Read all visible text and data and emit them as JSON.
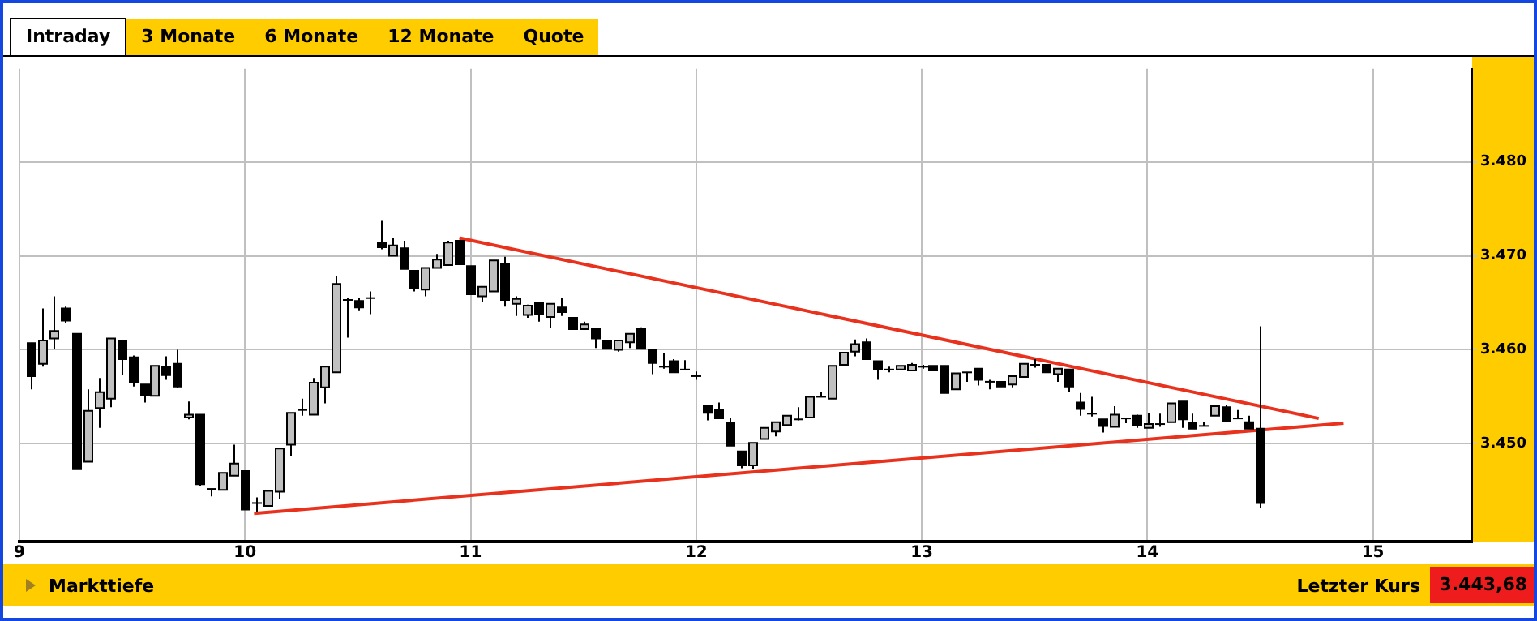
{
  "chart_data": {
    "type": "candlestick",
    "annotations": [
      "Intraday",
      "3 Monate",
      "6 Monate",
      "12 Monate",
      "Quote",
      "Markttiefe",
      "Letzter Kurs",
      "3.443,68"
    ],
    "x": [
      9.05,
      9.1,
      9.15,
      9.2,
      9.25,
      9.3,
      9.35,
      9.4,
      9.45,
      9.5,
      9.55,
      9.6,
      9.65,
      9.7,
      9.75,
      9.8,
      9.85,
      9.9,
      9.95,
      10,
      10.05,
      10.1,
      10.15,
      10.2,
      10.25,
      10.3,
      10.35,
      10.4,
      10.45,
      10.5,
      10.55,
      10.6,
      10.65,
      10.7,
      10.75,
      10.8,
      10.85,
      10.9,
      10.95,
      11,
      11.05,
      11.1,
      11.15,
      11.2,
      11.25,
      11.3,
      11.35,
      11.4,
      11.45,
      11.5,
      11.55,
      11.6,
      11.65,
      11.7,
      11.75,
      11.8,
      11.85,
      11.9,
      11.95,
      12,
      12.05,
      12.1,
      12.15,
      12.2,
      12.25,
      12.3,
      12.35,
      12.4,
      12.45,
      12.5,
      12.55,
      12.6,
      12.65,
      12.7,
      12.75,
      12.8,
      12.85,
      12.9,
      12.95,
      13,
      13.05,
      13.1,
      13.15,
      13.2,
      13.25,
      13.3,
      13.35,
      13.4,
      13.45,
      13.5,
      13.55,
      13.6,
      13.65,
      13.7,
      13.75,
      13.8,
      13.85,
      13.9,
      13.95,
      14,
      14.05,
      14.1,
      14.15,
      14.2,
      14.25,
      14.3,
      14.35,
      14.4,
      14.45,
      14.5
    ],
    "ohlc": [
      [
        3460.7,
        3460.7,
        3455.8,
        3457.2
      ],
      [
        3458.5,
        3464.4,
        3458.2,
        3461.0
      ],
      [
        3461.2,
        3465.7,
        3460.1,
        3462.0
      ],
      [
        3464.4,
        3464.6,
        3462.8,
        3463.1
      ],
      [
        3461.7,
        3461.7,
        3447.3,
        3447.3
      ],
      [
        3448.1,
        3455.8,
        3448.1,
        3453.5
      ],
      [
        3453.8,
        3457.0,
        3451.7,
        3455.5
      ],
      [
        3454.8,
        3461.2,
        3453.9,
        3461.2
      ],
      [
        3461.0,
        3461.0,
        3457.3,
        3459.0
      ],
      [
        3459.2,
        3459.4,
        3456.1,
        3456.6
      ],
      [
        3456.3,
        3456.3,
        3454.4,
        3455.2
      ],
      [
        3455.1,
        3458.3,
        3455.1,
        3458.3
      ],
      [
        3458.2,
        3459.3,
        3456.8,
        3457.3
      ],
      [
        3458.5,
        3460.0,
        3455.9,
        3456.1
      ],
      [
        3452.8,
        3454.5,
        3452.6,
        3453.1
      ],
      [
        3453.1,
        3453.1,
        3445.5,
        3445.7
      ],
      [
        3445.2,
        3445.2,
        3444.4,
        3445.2
      ],
      [
        3445.1,
        3446.9,
        3445.1,
        3446.9
      ],
      [
        3446.6,
        3449.9,
        3446.6,
        3447.9
      ],
      [
        3447.1,
        3447.1,
        3443.0,
        3443.0
      ],
      [
        3443.7,
        3444.3,
        3442.7,
        3443.7
      ],
      [
        3443.4,
        3445.0,
        3443.4,
        3445.0
      ],
      [
        3444.9,
        3449.5,
        3444.1,
        3449.5
      ],
      [
        3449.9,
        3453.3,
        3448.7,
        3453.3
      ],
      [
        3453.6,
        3454.8,
        3453.0,
        3453.6
      ],
      [
        3453.1,
        3457.0,
        3453.1,
        3456.5
      ],
      [
        3456.0,
        3458.2,
        3454.3,
        3458.2
      ],
      [
        3457.6,
        3467.8,
        3457.6,
        3467.0
      ],
      [
        3465.3,
        3465.5,
        3461.3,
        3465.3
      ],
      [
        3465.2,
        3465.5,
        3464.2,
        3464.5
      ],
      [
        3465.5,
        3466.2,
        3463.8,
        3465.5
      ],
      [
        3471.4,
        3473.8,
        3470.7,
        3470.9
      ],
      [
        3470.0,
        3471.9,
        3470.0,
        3471.1
      ],
      [
        3470.8,
        3471.6,
        3468.6,
        3468.6
      ],
      [
        3468.4,
        3468.4,
        3466.2,
        3466.6
      ],
      [
        3466.4,
        3468.7,
        3465.7,
        3468.7
      ],
      [
        3468.7,
        3470.2,
        3468.7,
        3469.6
      ],
      [
        3469.0,
        3471.6,
        3469.0,
        3471.4
      ],
      [
        3471.6,
        3471.6,
        3469.1,
        3469.1
      ],
      [
        3468.9,
        3468.9,
        3465.9,
        3465.9
      ],
      [
        3465.7,
        3466.7,
        3465.1,
        3466.7
      ],
      [
        3466.2,
        3469.5,
        3466.2,
        3469.5
      ],
      [
        3469.1,
        3469.9,
        3464.6,
        3465.3
      ],
      [
        3464.9,
        3465.7,
        3463.6,
        3465.4
      ],
      [
        3463.7,
        3464.8,
        3463.4,
        3464.7
      ],
      [
        3465.0,
        3465.0,
        3463.0,
        3463.8
      ],
      [
        3463.5,
        3464.9,
        3462.3,
        3464.9
      ],
      [
        3464.5,
        3465.5,
        3463.6,
        3464.0
      ],
      [
        3463.4,
        3463.4,
        3462.2,
        3462.2
      ],
      [
        3462.2,
        3463.0,
        3462.2,
        3462.7
      ],
      [
        3462.2,
        3462.2,
        3460.2,
        3461.2
      ],
      [
        3461.0,
        3461.0,
        3460.1,
        3460.1
      ],
      [
        3460.0,
        3461.0,
        3459.8,
        3461.0
      ],
      [
        3460.8,
        3461.7,
        3460.2,
        3461.7
      ],
      [
        3462.2,
        3462.4,
        3460.1,
        3460.1
      ],
      [
        3460.0,
        3460.0,
        3457.4,
        3458.6
      ],
      [
        3458.2,
        3459.6,
        3458.0,
        3458.2
      ],
      [
        3458.8,
        3459.0,
        3457.6,
        3457.6
      ],
      [
        3457.9,
        3458.9,
        3457.9,
        3457.9
      ],
      [
        3457.2,
        3457.7,
        3456.8,
        3457.2
      ],
      [
        3454.1,
        3454.1,
        3452.5,
        3453.3
      ],
      [
        3453.6,
        3454.4,
        3452.7,
        3452.7
      ],
      [
        3452.2,
        3452.8,
        3449.8,
        3449.8
      ],
      [
        3449.2,
        3449.2,
        3447.4,
        3447.7
      ],
      [
        3447.7,
        3450.1,
        3447.3,
        3450.1
      ],
      [
        3450.5,
        3451.7,
        3450.5,
        3451.7
      ],
      [
        3451.3,
        3452.3,
        3450.8,
        3452.3
      ],
      [
        3452.0,
        3453.0,
        3452.0,
        3453.0
      ],
      [
        3452.6,
        3453.9,
        3452.5,
        3452.6
      ],
      [
        3452.8,
        3455.0,
        3452.8,
        3455.0
      ],
      [
        3455.0,
        3455.5,
        3455.0,
        3455.0
      ],
      [
        3454.8,
        3458.3,
        3454.8,
        3458.3
      ],
      [
        3458.4,
        3459.7,
        3458.3,
        3459.7
      ],
      [
        3459.8,
        3461.1,
        3459.3,
        3460.6
      ],
      [
        3460.8,
        3461.2,
        3459.0,
        3459.0
      ],
      [
        3458.8,
        3458.8,
        3456.8,
        3457.9
      ],
      [
        3457.9,
        3458.2,
        3457.6,
        3457.9
      ],
      [
        3457.9,
        3458.3,
        3457.9,
        3458.3
      ],
      [
        3457.8,
        3458.6,
        3457.8,
        3458.4
      ],
      [
        3458.2,
        3458.4,
        3458.0,
        3458.2
      ],
      [
        3458.3,
        3458.3,
        3457.8,
        3457.8
      ],
      [
        3458.3,
        3458.3,
        3455.4,
        3455.4
      ],
      [
        3455.8,
        3457.5,
        3455.8,
        3457.5
      ],
      [
        3457.6,
        3457.6,
        3456.6,
        3457.6
      ],
      [
        3458.0,
        3458.0,
        3456.2,
        3456.8
      ],
      [
        3456.6,
        3456.8,
        3455.8,
        3456.6
      ],
      [
        3456.6,
        3456.6,
        3456.1,
        3456.1
      ],
      [
        3456.3,
        3457.2,
        3456.0,
        3457.2
      ],
      [
        3457.1,
        3458.5,
        3457.1,
        3458.5
      ],
      [
        3458.4,
        3459.0,
        3458.1,
        3458.4
      ],
      [
        3458.4,
        3458.4,
        3457.6,
        3457.6
      ],
      [
        3457.4,
        3458.0,
        3456.6,
        3458.0
      ],
      [
        3457.9,
        3457.9,
        3455.5,
        3456.1
      ],
      [
        3454.4,
        3455.4,
        3453.0,
        3453.7
      ],
      [
        3453.2,
        3455.0,
        3452.9,
        3453.2
      ],
      [
        3452.6,
        3452.6,
        3451.2,
        3451.9
      ],
      [
        3451.8,
        3454.0,
        3451.8,
        3453.1
      ],
      [
        3452.7,
        3452.7,
        3452.2,
        3452.7
      ],
      [
        3453.0,
        3453.1,
        3451.7,
        3452.0
      ],
      [
        3451.7,
        3453.3,
        3451.7,
        3452.1
      ],
      [
        3452.1,
        3453.2,
        3451.8,
        3452.1
      ],
      [
        3452.3,
        3454.3,
        3452.3,
        3454.3
      ],
      [
        3454.5,
        3454.5,
        3451.7,
        3452.6
      ],
      [
        3452.2,
        3453.2,
        3451.6,
        3451.6
      ],
      [
        3451.9,
        3452.3,
        3451.9,
        3451.9
      ],
      [
        3453.0,
        3454.0,
        3453.0,
        3454.0
      ],
      [
        3453.9,
        3454.1,
        3452.4,
        3452.4
      ],
      [
        3452.7,
        3453.6,
        3452.7,
        3452.7
      ],
      [
        3452.3,
        3453.0,
        3451.6,
        3451.6
      ],
      [
        3451.6,
        3462.5,
        3443.2,
        3443.7
      ]
    ],
    "series": [
      {
        "type": "line",
        "color": "#e8321e",
        "x": [
          10.95,
          14.76
        ],
        "values": [
          3471.9,
          3452.7
        ]
      },
      {
        "type": "line",
        "color": "#e8321e",
        "x": [
          10.04,
          14.87
        ],
        "values": [
          3442.6,
          3452.2
        ]
      }
    ],
    "xlim": [
      9,
      15.44
    ],
    "xticks": [
      9,
      10,
      11,
      12,
      13,
      14,
      15
    ],
    "ylim": [
      3439.6,
      3489.9
    ],
    "yticks": [
      {
        "value": 3450,
        "label": "3.450"
      },
      {
        "value": 3460,
        "label": "3.460"
      },
      {
        "value": 3470,
        "label": "3.470"
      },
      {
        "value": 3480,
        "label": "3.480"
      }
    ],
    "grid": true
  }
}
